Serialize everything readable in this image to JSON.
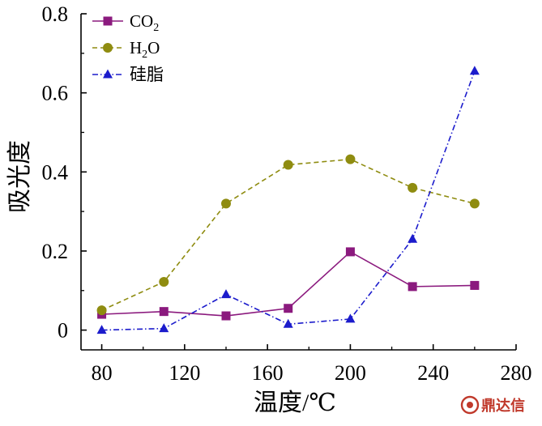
{
  "colors": {
    "co2": "#8b1a7e",
    "h2o": "#8f8c10",
    "grease": "#1c1ccc",
    "watermark": "#c0392b"
  },
  "watermark": {
    "text": "鼎达信",
    "icon": "seal-icon"
  },
  "chart_data": {
    "type": "line",
    "title": "",
    "xlabel": "温度/℃",
    "ylabel": "吸光度",
    "xlim": [
      70,
      280
    ],
    "ylim": [
      -0.05,
      0.8
    ],
    "x_ticks": [
      80,
      120,
      160,
      200,
      240,
      280
    ],
    "y_ticks": [
      0,
      0.2,
      0.4,
      0.6,
      0.8
    ],
    "x_tick_labels": [
      "80",
      "120",
      "160",
      "200",
      "240",
      "280"
    ],
    "y_tick_labels": [
      "0",
      "0.2",
      "0.4",
      "0.6",
      "0.8"
    ],
    "grid": false,
    "legend_position": "top-left",
    "series": [
      {
        "key": "co2",
        "name": "CO",
        "name_sub": "2",
        "name_tail": "",
        "marker": "square",
        "line": "solid",
        "x": [
          80,
          110,
          140,
          170,
          200,
          230,
          260
        ],
        "values": [
          0.04,
          0.047,
          0.036,
          0.055,
          0.198,
          0.11,
          0.113
        ]
      },
      {
        "key": "h2o",
        "name": "H",
        "name_sub": "2",
        "name_tail": "O",
        "marker": "circle",
        "line": "dashed",
        "x": [
          80,
          110,
          140,
          170,
          200,
          230,
          260
        ],
        "values": [
          0.05,
          0.122,
          0.32,
          0.418,
          0.432,
          0.36,
          0.32
        ]
      },
      {
        "key": "grease",
        "name": "硅脂",
        "name_sub": "",
        "name_tail": "",
        "marker": "triangle",
        "line": "dashdot",
        "x": [
          80,
          110,
          140,
          170,
          200,
          230,
          260
        ],
        "values": [
          0.0,
          0.004,
          0.09,
          0.015,
          0.028,
          0.23,
          0.655
        ]
      }
    ]
  }
}
